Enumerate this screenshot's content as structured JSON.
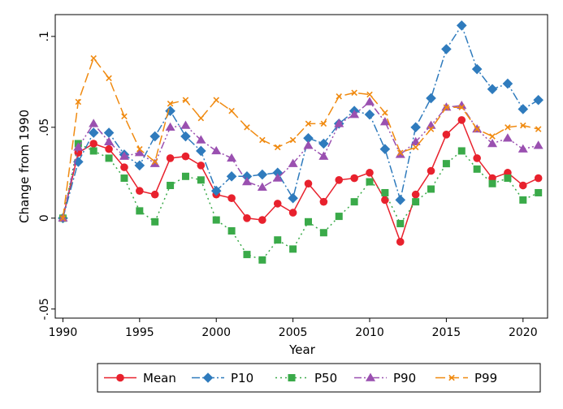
{
  "chart_data": {
    "type": "line",
    "xlabel": "Year",
    "ylabel": "Change from 1990",
    "xlim": [
      1989.5,
      2021.6
    ],
    "ylim": [
      -0.055,
      0.112
    ],
    "xticks": [
      1990,
      1995,
      2000,
      2005,
      2010,
      2015,
      2020
    ],
    "xtick_labels": [
      "1990",
      "1995",
      "2000",
      "2005",
      "2010",
      "2015",
      "2020"
    ],
    "yticks": [
      -0.05,
      0,
      0.05,
      0.1
    ],
    "ytick_labels": [
      "-.05",
      "0",
      ".05",
      ".1"
    ],
    "grid": false,
    "legend_position": "bottom",
    "x": [
      1990,
      1991,
      1992,
      1993,
      1994,
      1995,
      1996,
      1997,
      1998,
      1999,
      2000,
      2001,
      2002,
      2003,
      2004,
      2005,
      2006,
      2007,
      2008,
      2009,
      2010,
      2011,
      2012,
      2013,
      2014,
      2015,
      2016,
      2017,
      2018,
      2019,
      2020,
      2021
    ],
    "series": [
      {
        "name": "Mean",
        "color": "#e8212d",
        "marker": "circle",
        "dash": "",
        "values": [
          0,
          0.036,
          0.041,
          0.038,
          0.028,
          0.015,
          0.013,
          0.033,
          0.034,
          0.029,
          0.013,
          0.011,
          0.0,
          -0.001,
          0.008,
          0.003,
          0.019,
          0.009,
          0.021,
          0.022,
          0.025,
          0.01,
          -0.013,
          0.013,
          0.026,
          0.046,
          0.054,
          0.033,
          0.022,
          0.025,
          0.018,
          0.022
        ]
      },
      {
        "name": "P10",
        "color": "#2f7bbd",
        "marker": "diamond",
        "dash": "10,3,2,3",
        "values": [
          0,
          0.031,
          0.047,
          0.047,
          0.035,
          0.029,
          0.045,
          0.059,
          0.045,
          0.037,
          0.015,
          0.023,
          0.023,
          0.024,
          0.025,
          0.011,
          0.044,
          0.041,
          0.052,
          0.059,
          0.057,
          0.038,
          0.01,
          0.05,
          0.066,
          0.093,
          0.106,
          0.082,
          0.071,
          0.074,
          0.06,
          0.065
        ]
      },
      {
        "name": "P50",
        "color": "#3aaa49",
        "marker": "square",
        "dash": "2,4",
        "values": [
          0,
          0.041,
          0.037,
          0.033,
          0.022,
          0.004,
          -0.002,
          0.018,
          0.023,
          0.021,
          -0.001,
          -0.007,
          -0.02,
          -0.023,
          -0.012,
          -0.017,
          -0.002,
          -0.008,
          0.001,
          0.009,
          0.02,
          0.014,
          -0.003,
          0.009,
          0.016,
          0.03,
          0.037,
          0.027,
          0.019,
          0.022,
          0.01,
          0.014
        ]
      },
      {
        "name": "P90",
        "color": "#9a50b0",
        "marker": "triangle",
        "dash": "9,3,2,3,2,3",
        "values": [
          0,
          0.039,
          0.052,
          0.042,
          0.034,
          0.036,
          0.03,
          0.05,
          0.051,
          0.043,
          0.037,
          0.033,
          0.02,
          0.017,
          0.022,
          0.03,
          0.04,
          0.034,
          0.052,
          0.057,
          0.064,
          0.053,
          0.035,
          0.042,
          0.051,
          0.061,
          0.062,
          0.049,
          0.041,
          0.044,
          0.038,
          0.04
        ]
      },
      {
        "name": "P99",
        "color": "#f08a10",
        "marker": "x",
        "dash": "12,5",
        "values": [
          0,
          0.064,
          0.088,
          0.077,
          0.056,
          0.038,
          0.031,
          0.063,
          0.065,
          0.055,
          0.065,
          0.059,
          0.05,
          0.043,
          0.039,
          0.043,
          0.052,
          0.052,
          0.067,
          0.069,
          0.068,
          0.058,
          0.036,
          0.039,
          0.049,
          0.061,
          0.061,
          0.049,
          0.045,
          0.05,
          0.051,
          0.049
        ]
      }
    ]
  }
}
